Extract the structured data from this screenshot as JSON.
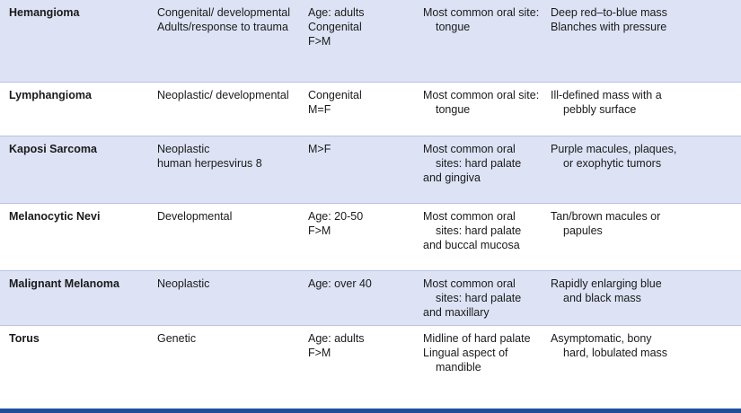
{
  "rows": [
    {
      "name": "Hemangioma",
      "cause": [
        "Congenital/ developmental",
        "Adults/response to trauma"
      ],
      "demographics": [
        "Age: adults",
        "Congenital",
        "F>M"
      ],
      "location": [
        "Most common oral site: tongue"
      ],
      "features": [
        "Deep red–to-blue mass",
        "Blanches with pressure"
      ]
    },
    {
      "name": "Lymphangioma",
      "cause": [
        "Neoplastic/ developmental"
      ],
      "demographics": [
        "Congenital",
        "M=F"
      ],
      "location": [
        "Most common oral site: tongue"
      ],
      "features": [
        "Ill-defined mass with a pebbly surface"
      ]
    },
    {
      "name": "Kaposi Sarcoma",
      "cause": [
        "Neoplastic",
        "human herpesvirus 8"
      ],
      "demographics": [
        "M>F"
      ],
      "location": [
        "Most common oral sites: hard palate",
        "and gingiva"
      ],
      "features": [
        "Purple macules, plaques, or exophytic tumors"
      ]
    },
    {
      "name": "Melanocytic Nevi",
      "cause": [
        "Developmental"
      ],
      "demographics": [
        "Age: 20-50",
        "F>M"
      ],
      "location": [
        "Most common oral sites: hard palate",
        "and buccal mucosa"
      ],
      "features": [
        "Tan/brown macules or papules"
      ]
    },
    {
      "name": "Malignant Melanoma",
      "cause": [
        "Neoplastic"
      ],
      "demographics": [
        "Age: over 40"
      ],
      "location": [
        "Most common oral sites: hard palate",
        "and maxillary"
      ],
      "features": [
        "Rapidly enlarging blue and black mass"
      ]
    },
    {
      "name": "Torus",
      "cause": [
        "Genetic"
      ],
      "demographics": [
        "Age: adults",
        "F>M"
      ],
      "location": [
        "Midline of hard palate",
        "Lingual aspect of mandible"
      ],
      "features": [
        "Asymptomatic, bony hard, lobulated mass"
      ]
    }
  ]
}
